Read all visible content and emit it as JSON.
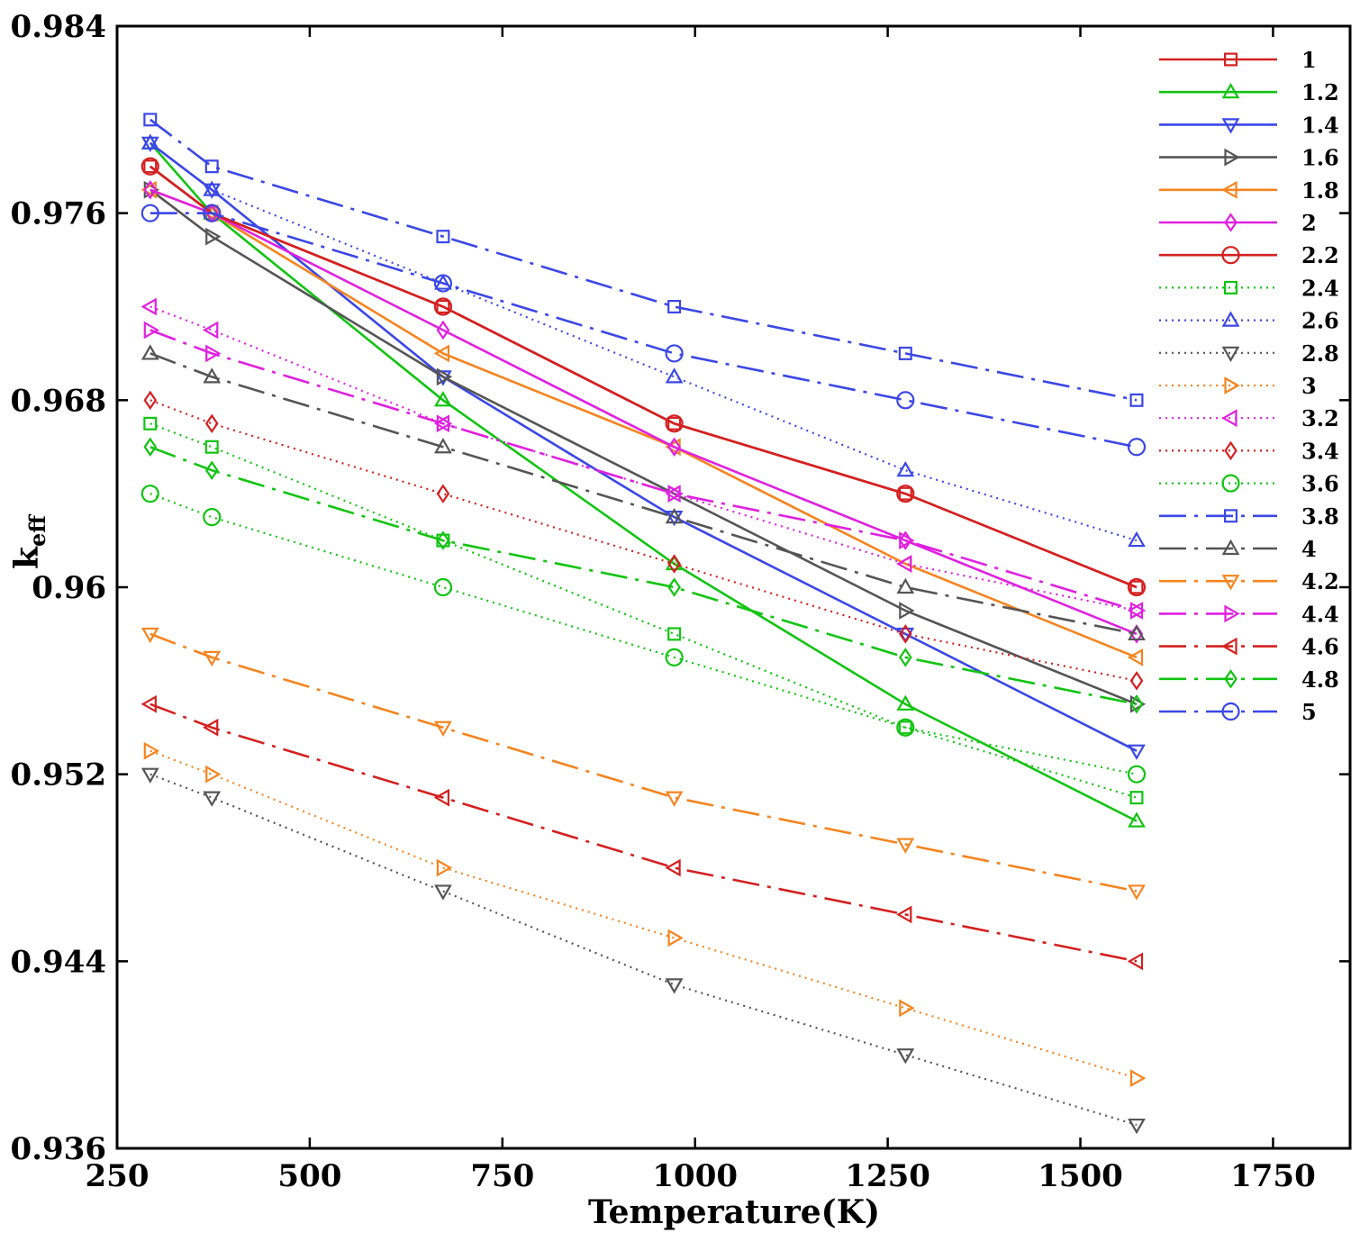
{
  "chart_data": {
    "type": "line",
    "xlabel": "Temperature(K)",
    "ylabel_main": "k",
    "ylabel_sub": "eff",
    "xlim": [
      250,
      1850
    ],
    "ylim": [
      0.936,
      0.984
    ],
    "x_ticks": [
      250,
      500,
      750,
      1000,
      1250,
      1500,
      1750
    ],
    "x_tick_labels": [
      "250",
      "500",
      "750",
      "1000",
      "1250",
      "1500",
      "1750"
    ],
    "y_ticks": [
      0.936,
      0.944,
      0.952,
      0.96,
      0.968,
      0.976,
      0.984
    ],
    "y_tick_labels": [
      "0.936",
      "0.944",
      "0.952",
      "0.96",
      "0.968",
      "0.976",
      "0.984"
    ],
    "grid": false,
    "legend_position": "top-right",
    "x": [
      293,
      373,
      673,
      973,
      1273,
      1573
    ],
    "series": [
      {
        "name": "1",
        "color": "#d42020",
        "dash": "solid",
        "marker": "square",
        "values": [
          0.978,
          0.976,
          0.972,
          0.967,
          0.964,
          0.96
        ]
      },
      {
        "name": "1.2",
        "color": "#11c411",
        "dash": "solid",
        "marker": "triangle-up",
        "values": [
          0.979,
          0.976,
          0.968,
          0.961,
          0.955,
          0.95
        ]
      },
      {
        "name": "1.4",
        "color": "#3b47e6",
        "dash": "solid",
        "marker": "triangle-down",
        "values": [
          0.979,
          0.977,
          0.969,
          0.963,
          0.958,
          0.953
        ]
      },
      {
        "name": "1.6",
        "color": "#555555",
        "dash": "solid",
        "marker": "triangle-right",
        "values": [
          0.977,
          0.975,
          0.969,
          0.964,
          0.959,
          0.955
        ]
      },
      {
        "name": "1.8",
        "color": "#f5841f",
        "dash": "solid",
        "marker": "triangle-left",
        "values": [
          0.977,
          0.976,
          0.97,
          0.966,
          0.961,
          0.957
        ]
      },
      {
        "name": "2",
        "color": "#e020e0",
        "dash": "solid",
        "marker": "diamond",
        "values": [
          0.977,
          0.976,
          0.971,
          0.966,
          0.962,
          0.958
        ]
      },
      {
        "name": "2.2",
        "color": "#d42020",
        "dash": "solid",
        "marker": "circle",
        "values": [
          0.978,
          0.976,
          0.972,
          0.967,
          0.964,
          0.96
        ]
      },
      {
        "name": "2.4",
        "color": "#11c411",
        "dash": "dotted",
        "marker": "square",
        "values": [
          0.967,
          0.966,
          0.962,
          0.958,
          0.954,
          0.951
        ]
      },
      {
        "name": "2.6",
        "color": "#3b47e6",
        "dash": "dotted",
        "marker": "triangle-up",
        "values": [
          0.979,
          0.977,
          0.973,
          0.969,
          0.965,
          0.962
        ]
      },
      {
        "name": "2.8",
        "color": "#555555",
        "dash": "dotted",
        "marker": "triangle-down",
        "values": [
          0.952,
          0.951,
          0.947,
          0.943,
          0.94,
          0.937
        ]
      },
      {
        "name": "3",
        "color": "#f5841f",
        "dash": "dotted",
        "marker": "triangle-right",
        "values": [
          0.953,
          0.952,
          0.948,
          0.945,
          0.942,
          0.939
        ]
      },
      {
        "name": "3.2",
        "color": "#e020e0",
        "dash": "dotted",
        "marker": "triangle-left",
        "values": [
          0.972,
          0.971,
          0.967,
          0.964,
          0.961,
          0.959
        ]
      },
      {
        "name": "3.4",
        "color": "#d42020",
        "dash": "dotted",
        "marker": "diamond",
        "values": [
          0.968,
          0.967,
          0.964,
          0.961,
          0.958,
          0.956
        ]
      },
      {
        "name": "3.6",
        "color": "#11c411",
        "dash": "dotted",
        "marker": "circle",
        "values": [
          0.964,
          0.963,
          0.96,
          0.957,
          0.954,
          0.952
        ]
      },
      {
        "name": "3.8",
        "color": "#3b47e6",
        "dash": "dashdot",
        "marker": "square",
        "values": [
          0.98,
          0.978,
          0.975,
          0.972,
          0.97,
          0.968
        ]
      },
      {
        "name": "4",
        "color": "#555555",
        "dash": "dashdot",
        "marker": "triangle-up",
        "values": [
          0.97,
          0.969,
          0.966,
          0.963,
          0.96,
          0.958
        ]
      },
      {
        "name": "4.2",
        "color": "#f5841f",
        "dash": "dashdot",
        "marker": "triangle-down",
        "values": [
          0.958,
          0.957,
          0.954,
          0.951,
          0.949,
          0.947
        ]
      },
      {
        "name": "4.4",
        "color": "#e020e0",
        "dash": "dashdot",
        "marker": "triangle-right",
        "values": [
          0.971,
          0.97,
          0.967,
          0.964,
          0.962,
          0.959
        ]
      },
      {
        "name": "4.6",
        "color": "#d42020",
        "dash": "dashdot",
        "marker": "triangle-left",
        "values": [
          0.955,
          0.954,
          0.951,
          0.948,
          0.946,
          0.944
        ]
      },
      {
        "name": "4.8",
        "color": "#11c411",
        "dash": "dashdot",
        "marker": "diamond",
        "values": [
          0.966,
          0.965,
          0.962,
          0.96,
          0.957,
          0.955
        ]
      },
      {
        "name": "5",
        "color": "#3b47e6",
        "dash": "dashdot",
        "marker": "circle",
        "values": [
          0.976,
          0.976,
          0.973,
          0.97,
          0.968,
          0.966
        ]
      }
    ]
  }
}
